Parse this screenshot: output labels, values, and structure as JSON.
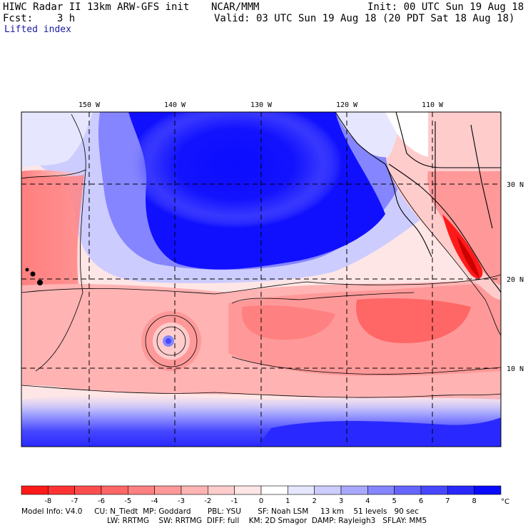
{
  "header": {
    "left_line1": "HIWC Radar II 13km ARW-GFS init",
    "center_line1": "NCAR/MMM",
    "right_line1": "Init: 00 UTC Sun 19 Aug 18",
    "left_line2": "Fcst:    3 h",
    "right_line2": "Valid: 03 UTC Sun 19 Aug 18 (20 PDT Sat 18 Aug 18)",
    "field_name": "Lifted index"
  },
  "map": {
    "lon_labels": [
      "150 W",
      "140 W",
      "130 W",
      "120 W",
      "110 W"
    ],
    "lat_labels": [
      "30 N",
      "20 N",
      "10 N"
    ]
  },
  "colorbar": {
    "unit": "°C",
    "tick_labels": [
      "-8",
      "-7",
      "-6",
      "-5",
      "-4",
      "-3",
      "-2",
      "-1",
      "0",
      "1",
      "2",
      "3",
      "4",
      "5",
      "6",
      "7",
      "8"
    ],
    "colors": [
      "#ff1a1a",
      "#ff3333",
      "#ff4d4d",
      "#ff6666",
      "#ff8080",
      "#ff9999",
      "#ffb3b3",
      "#ffcccc",
      "#ffe6e6",
      "#ffffff",
      "#e6e6ff",
      "#ccccff",
      "#a8a8ff",
      "#8585ff",
      "#6666ff",
      "#4747ff",
      "#2929ff",
      "#0a0aff"
    ]
  },
  "footer": {
    "line1": "Model Info: V4.0     CU: N_Tiedt  MP: Goddard       PBL: YSU       SF: Noah LSM     13 km    51 levels   90 sec",
    "line2": "LW: RRTMG    SW: RRTMG  DIFF: full    KM: 2D Smagor  DAMP: Rayleigh3   SFLAY: MM5"
  }
}
